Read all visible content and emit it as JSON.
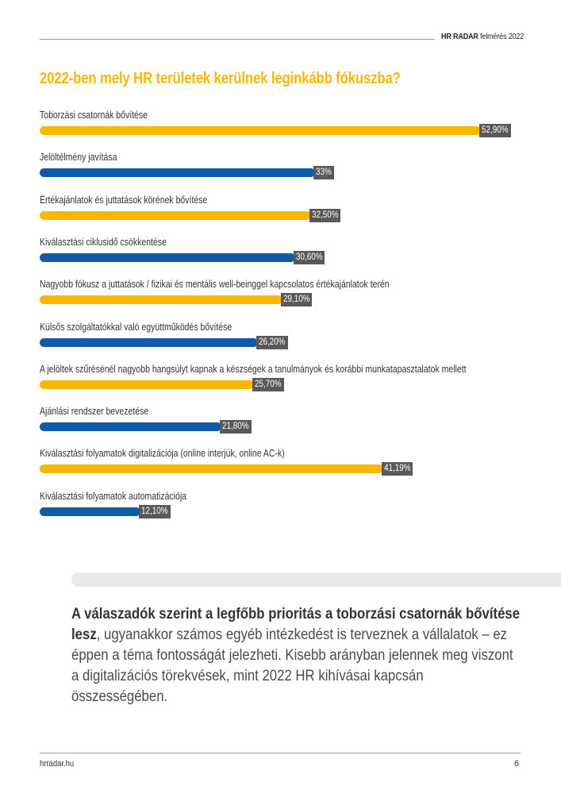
{
  "header": {
    "brand_bold": "HR RADAR",
    "brand_rest": " felmérés 2022"
  },
  "colors": {
    "accent_yellow": "#f9b700",
    "accent_blue": "#0f5ba7",
    "value_tag": "#595959"
  },
  "chart_data": {
    "type": "bar",
    "orientation": "horizontal",
    "title": "2022-ben mely HR területek kerülnek leginkább fókuszba?",
    "xlabel": "",
    "ylabel": "",
    "xlim": [
      0,
      52.9
    ],
    "grid": false,
    "legend": "none",
    "categories": [
      "Toborzási csatornák bővítése",
      "Jelöltélmény javítása",
      "Értékajánlatok és juttatások körének bővítése",
      "Kiválasztási ciklusidő csökkentése",
      "Nagyobb fókusz a juttatások / fizikai és mentális well-beinggel kapcsolatos értékajánlatok terén",
      "Külsős szolgáltatókkal való együttműködés bővítése",
      "A jelöltek szűrésénél nagyobb hangsúlyt kapnak a készségek a tanulmányok és korábbi munkatapasztalatok mellett",
      "Ajánlási rendszer bevezetése",
      "Kiválasztási folyamatok digitalizációja (online interjúk, online AC-k)",
      "Kiválasztási folyamatok automatizációja"
    ],
    "values": [
      52.9,
      33,
      32.5,
      30.6,
      29.1,
      26.2,
      25.7,
      21.8,
      41.19,
      12.1
    ],
    "value_labels": [
      "52,90%",
      "33%",
      "32,50%",
      "30,60%",
      "29,10%",
      "26,20%",
      "25,70%",
      "21,80%",
      "41,19%",
      "12,10%"
    ],
    "bar_colors": [
      "#f9b700",
      "#0f5ba7",
      "#f9b700",
      "#0f5ba7",
      "#f9b700",
      "#0f5ba7",
      "#f9b700",
      "#0f5ba7",
      "#f9b700",
      "#0f5ba7"
    ],
    "unit": "%"
  },
  "quote": {
    "bold": "A válaszadók szerint a legfőbb prioritás a toborzási csatornák bővítése lesz",
    "rest": ", ugyanakkor számos egyéb intézkedést is terveznek a vállalatok – ez éppen a téma fontosságát jelezheti. Kisebb arányban jelennek meg viszont a digitalizációs törekvések, mint 2022 HR kihívásai kapcsán összességében."
  },
  "footer": {
    "site": "hrradar.hu",
    "page": "6"
  }
}
